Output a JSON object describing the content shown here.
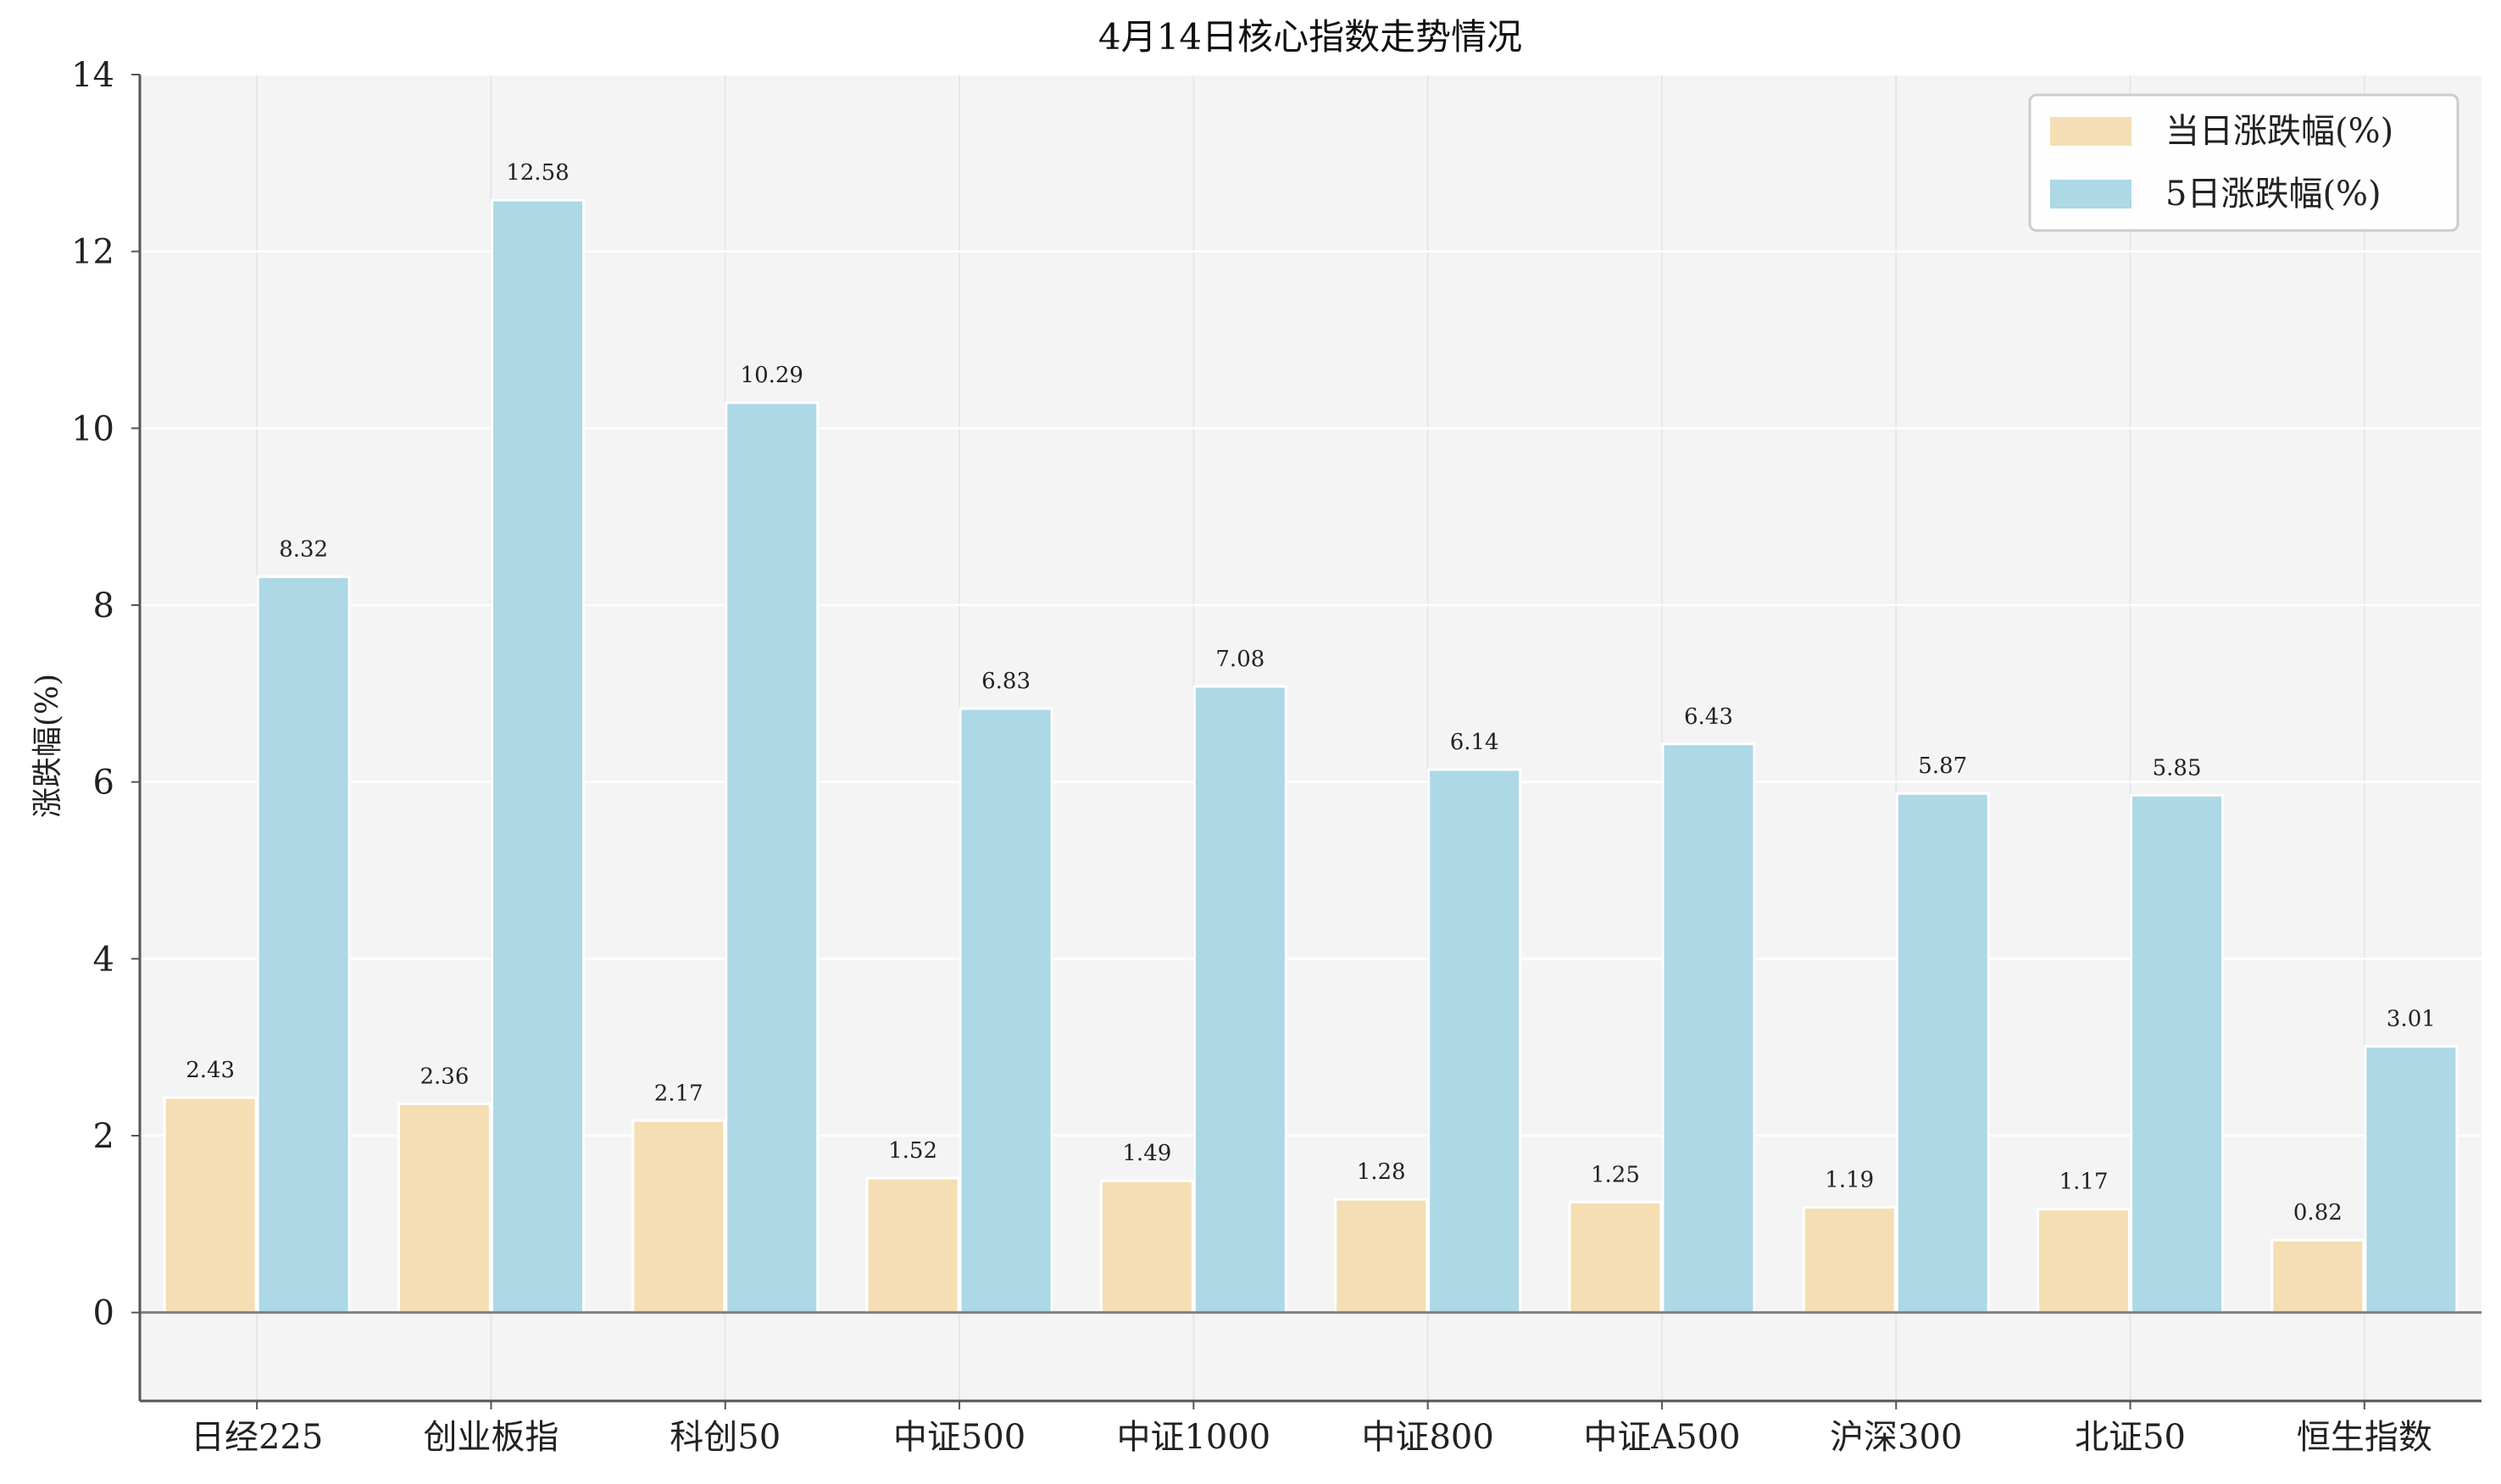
{
  "chart_data": {
    "type": "bar",
    "title": "4月14日核心指数走势情况",
    "xlabel": "",
    "ylabel": "涨跌幅(%)",
    "ylim": [
      -1,
      14
    ],
    "yticks": [
      0,
      2,
      4,
      6,
      8,
      10,
      12,
      14
    ],
    "grid": true,
    "legend_position": "top-right",
    "categories": [
      "日经225",
      "创业板指",
      "科创50",
      "中证500",
      "中证1000",
      "中证800",
      "中证A500",
      "沪深300",
      "北证50",
      "恒生指数"
    ],
    "series": [
      {
        "name": "当日涨跌幅(%)",
        "color": "#F5DEB3",
        "values": [
          2.43,
          2.36,
          2.17,
          1.52,
          1.49,
          1.28,
          1.25,
          1.19,
          1.17,
          0.82
        ]
      },
      {
        "name": "5日涨跌幅(%)",
        "color": "#ADD8E6",
        "values": [
          8.32,
          12.58,
          10.29,
          6.83,
          7.08,
          6.14,
          6.43,
          5.87,
          5.85,
          3.01
        ]
      }
    ]
  },
  "colors": {
    "plot_background": "#F4F4F4",
    "grid": "#FFFFFF",
    "axis": "#555555",
    "zero_line": "#808080"
  }
}
